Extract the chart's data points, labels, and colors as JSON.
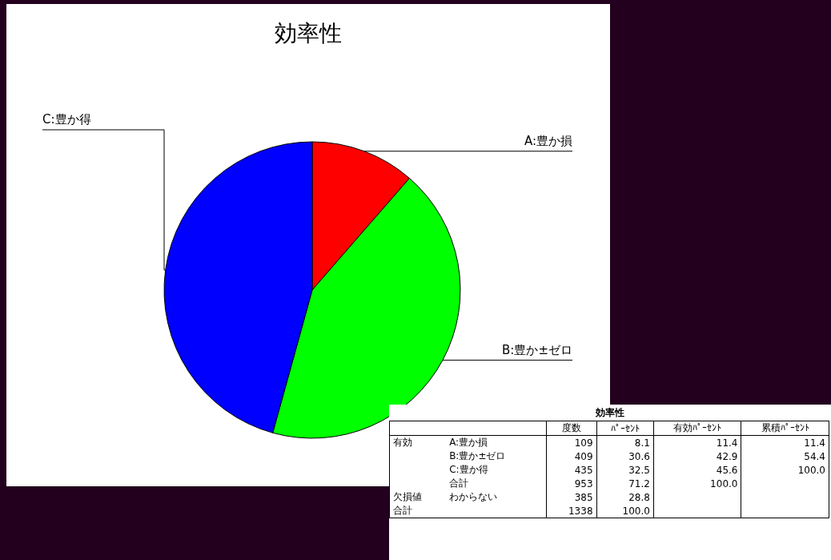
{
  "chart_data": [
    {
      "type": "pie",
      "title": "効率性",
      "categories": [
        "A:豊か損",
        "B:豊か±ゼロ",
        "C:豊か得"
      ],
      "values": [
        11.4,
        42.9,
        45.7
      ],
      "colors": [
        "#ff0000",
        "#00ff00",
        "#0000ff"
      ]
    },
    {
      "type": "other",
      "title": "効率性",
      "categories": [
        "度数",
        "ﾊﾟｰｾﾝﾄ",
        "有効ﾊﾟｰｾﾝﾄ",
        "累積ﾊﾟｰｾﾝﾄ"
      ],
      "y_categories": [
        "有効",
        null,
        null,
        null,
        "欠損値",
        "合計"
      ],
      "y2_categories": [
        "A:豊か損",
        "B:豊か±ゼロ",
        "C:豊か得",
        "合計",
        "わからない",
        null
      ],
      "cell_labels": [
        [
          "109",
          "8.1",
          "11.4",
          "11.4"
        ],
        [
          "409",
          "30.6",
          "42.9",
          "54.4"
        ],
        [
          "435",
          "32.5",
          "45.6",
          "100.0"
        ],
        [
          "953",
          "71.2",
          "100.0",
          null
        ],
        [
          "385",
          "28.8",
          null,
          null
        ],
        [
          "1338",
          "100.0",
          null,
          null
        ]
      ]
    }
  ]
}
